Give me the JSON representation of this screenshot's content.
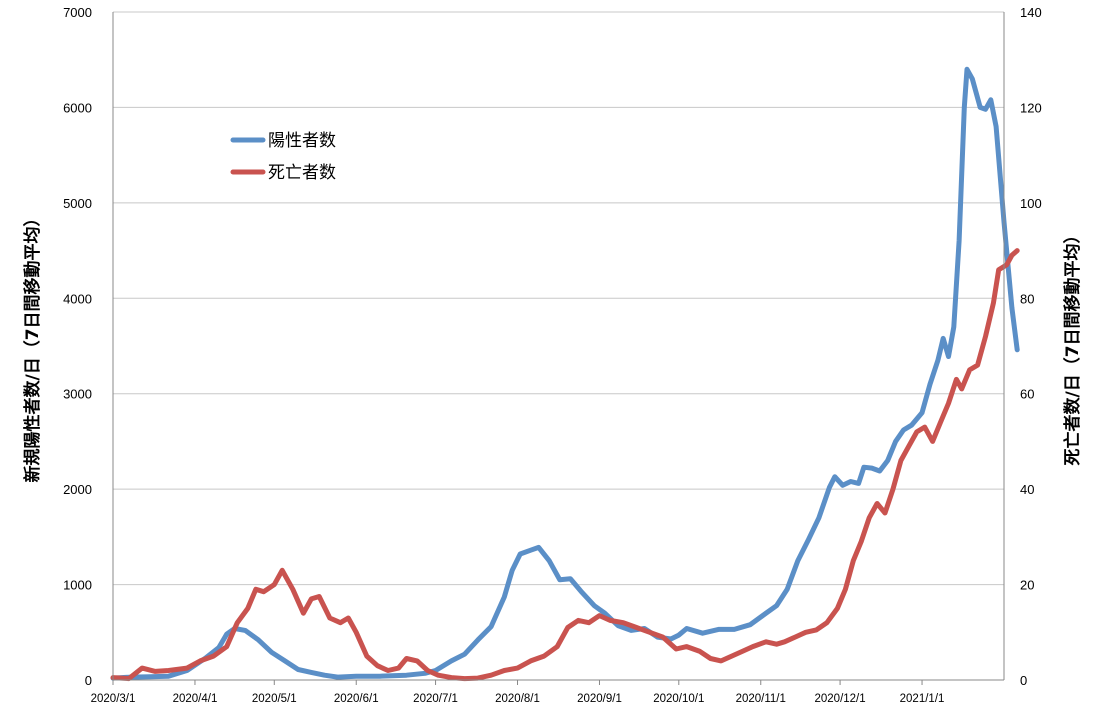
{
  "chart_data": {
    "type": "line",
    "left_axis": {
      "label": "新規陽性者数/日（7日間移動平均）",
      "ylim": [
        0,
        7000
      ],
      "ticks": [
        "0",
        "1000",
        "2000",
        "3000",
        "4000",
        "5000",
        "6000",
        "7000"
      ]
    },
    "right_axis": {
      "label": "死亡者数/日（7日間移動平均）",
      "ylim": [
        0,
        140
      ],
      "ticks": [
        "0",
        "20",
        "40",
        "60",
        "80",
        "100",
        "120",
        "140"
      ]
    },
    "x_ticks": [
      "2020/3/1",
      "2020/4/1",
      "2020/5/1",
      "2020/6/1",
      "2020/7/1",
      "2020/8/1",
      "2020/9/1",
      "2020/10/1",
      "2020/11/1",
      "2020/12/1",
      "2021/1/1"
    ],
    "x_range": [
      "2020/3/1",
      "2021/2/1"
    ],
    "grid": "horizontal",
    "legend_position": "upper-left",
    "series": [
      {
        "name": "陽性者数",
        "axis": "left",
        "color": "#5b8fc7",
        "points": [
          [
            "2020/3/1",
            20
          ],
          [
            "2020/3/8",
            30
          ],
          [
            "2020/3/15",
            35
          ],
          [
            "2020/3/22",
            40
          ],
          [
            "2020/3/29",
            100
          ],
          [
            "2020/4/5",
            230
          ],
          [
            "2020/4/10",
            340
          ],
          [
            "2020/4/13",
            480
          ],
          [
            "2020/4/16",
            540
          ],
          [
            "2020/4/20",
            520
          ],
          [
            "2020/4/25",
            420
          ],
          [
            "2020/4/30",
            290
          ],
          [
            "2020/5/5",
            200
          ],
          [
            "2020/5/10",
            110
          ],
          [
            "2020/5/15",
            80
          ],
          [
            "2020/5/20",
            50
          ],
          [
            "2020/5/25",
            30
          ],
          [
            "2020/6/1",
            40
          ],
          [
            "2020/6/10",
            40
          ],
          [
            "2020/6/20",
            50
          ],
          [
            "2020/6/27",
            70
          ],
          [
            "2020/7/1",
            100
          ],
          [
            "2020/7/7",
            200
          ],
          [
            "2020/7/12",
            270
          ],
          [
            "2020/7/17",
            420
          ],
          [
            "2020/7/22",
            560
          ],
          [
            "2020/7/27",
            870
          ],
          [
            "2020/7/30",
            1150
          ],
          [
            "2020/8/2",
            1320
          ],
          [
            "2020/8/6",
            1360
          ],
          [
            "2020/8/9",
            1390
          ],
          [
            "2020/8/13",
            1250
          ],
          [
            "2020/8/17",
            1050
          ],
          [
            "2020/8/21",
            1060
          ],
          [
            "2020/8/25",
            930
          ],
          [
            "2020/8/30",
            780
          ],
          [
            "2020/9/3",
            700
          ],
          [
            "2020/9/8",
            570
          ],
          [
            "2020/9/13",
            520
          ],
          [
            "2020/9/18",
            540
          ],
          [
            "2020/9/23",
            450
          ],
          [
            "2020/9/28",
            430
          ],
          [
            "2020/10/1",
            470
          ],
          [
            "2020/10/4",
            540
          ],
          [
            "2020/10/10",
            490
          ],
          [
            "2020/10/16",
            530
          ],
          [
            "2020/10/22",
            530
          ],
          [
            "2020/10/28",
            580
          ],
          [
            "2020/11/3",
            700
          ],
          [
            "2020/11/7",
            780
          ],
          [
            "2020/11/11",
            950
          ],
          [
            "2020/11/15",
            1250
          ],
          [
            "2020/11/19",
            1470
          ],
          [
            "2020/11/23",
            1700
          ],
          [
            "2020/11/27",
            2020
          ],
          [
            "2020/11/29",
            2130
          ],
          [
            "2020/12/2",
            2040
          ],
          [
            "2020/12/5",
            2080
          ],
          [
            "2020/12/8",
            2060
          ],
          [
            "2020/12/10",
            2230
          ],
          [
            "2020/12/13",
            2220
          ],
          [
            "2020/12/16",
            2190
          ],
          [
            "2020/12/19",
            2300
          ],
          [
            "2020/12/22",
            2500
          ],
          [
            "2020/12/25",
            2620
          ],
          [
            "2020/12/28",
            2670
          ],
          [
            "2021/1/1",
            2800
          ],
          [
            "2021/1/4",
            3100
          ],
          [
            "2021/1/7",
            3350
          ],
          [
            "2021/1/9",
            3580
          ],
          [
            "2021/1/11",
            3390
          ],
          [
            "2021/1/13",
            3700
          ],
          [
            "2021/1/15",
            4600
          ],
          [
            "2021/1/17",
            6000
          ],
          [
            "2021/1/18",
            6400
          ],
          [
            "2021/1/20",
            6300
          ],
          [
            "2021/1/23",
            6000
          ],
          [
            "2021/1/25",
            5980
          ],
          [
            "2021/1/27",
            6080
          ],
          [
            "2021/1/29",
            5800
          ],
          [
            "2021/2/1",
            4800
          ],
          [
            "2021/2/4",
            3900
          ],
          [
            "2021/2/6",
            3460
          ]
        ]
      },
      {
        "name": "死亡者数",
        "axis": "right",
        "color": "#c9534f",
        "points": [
          [
            "2020/3/1",
            0.5
          ],
          [
            "2020/3/7",
            0.3
          ],
          [
            "2020/3/12",
            2.5
          ],
          [
            "2020/3/17",
            1.8
          ],
          [
            "2020/3/22",
            2.0
          ],
          [
            "2020/3/29",
            2.5
          ],
          [
            "2020/4/3",
            4
          ],
          [
            "2020/4/8",
            5
          ],
          [
            "2020/4/13",
            7
          ],
          [
            "2020/4/17",
            12
          ],
          [
            "2020/4/21",
            15
          ],
          [
            "2020/4/24",
            19
          ],
          [
            "2020/4/27",
            18.5
          ],
          [
            "2020/5/1",
            20
          ],
          [
            "2020/5/4",
            23
          ],
          [
            "2020/5/8",
            19
          ],
          [
            "2020/5/12",
            14
          ],
          [
            "2020/5/15",
            17
          ],
          [
            "2020/5/18",
            17.5
          ],
          [
            "2020/5/22",
            13
          ],
          [
            "2020/5/26",
            12
          ],
          [
            "2020/5/29",
            13
          ],
          [
            "2020/6/1",
            10
          ],
          [
            "2020/6/5",
            5
          ],
          [
            "2020/6/9",
            3
          ],
          [
            "2020/6/13",
            2
          ],
          [
            "2020/6/17",
            2.5
          ],
          [
            "2020/6/20",
            4.5
          ],
          [
            "2020/6/24",
            4
          ],
          [
            "2020/6/28",
            2
          ],
          [
            "2020/7/2",
            1
          ],
          [
            "2020/7/7",
            0.5
          ],
          [
            "2020/7/12",
            0.3
          ],
          [
            "2020/7/17",
            0.4
          ],
          [
            "2020/7/22",
            1.0
          ],
          [
            "2020/7/27",
            2
          ],
          [
            "2020/8/1",
            2.5
          ],
          [
            "2020/8/6",
            4
          ],
          [
            "2020/8/11",
            5
          ],
          [
            "2020/8/16",
            7
          ],
          [
            "2020/8/20",
            11
          ],
          [
            "2020/8/24",
            12.5
          ],
          [
            "2020/8/28",
            12
          ],
          [
            "2020/9/1",
            13.5
          ],
          [
            "2020/9/5",
            12.5
          ],
          [
            "2020/9/10",
            12
          ],
          [
            "2020/9/15",
            11
          ],
          [
            "2020/9/20",
            10
          ],
          [
            "2020/9/25",
            9
          ],
          [
            "2020/9/30",
            6.5
          ],
          [
            "2020/10/4",
            7
          ],
          [
            "2020/10/9",
            6
          ],
          [
            "2020/10/13",
            4.5
          ],
          [
            "2020/10/17",
            4
          ],
          [
            "2020/10/21",
            5
          ],
          [
            "2020/10/25",
            6
          ],
          [
            "2020/10/29",
            7
          ],
          [
            "2020/11/3",
            8
          ],
          [
            "2020/11/7",
            7.5
          ],
          [
            "2020/11/10",
            8
          ],
          [
            "2020/11/14",
            9
          ],
          [
            "2020/11/18",
            10
          ],
          [
            "2020/11/22",
            10.5
          ],
          [
            "2020/11/26",
            12
          ],
          [
            "2020/11/30",
            15
          ],
          [
            "2020/12/3",
            19
          ],
          [
            "2020/12/6",
            25
          ],
          [
            "2020/12/9",
            29
          ],
          [
            "2020/12/12",
            34
          ],
          [
            "2020/12/15",
            37
          ],
          [
            "2020/12/18",
            35
          ],
          [
            "2020/12/21",
            40
          ],
          [
            "2020/12/24",
            46
          ],
          [
            "2020/12/27",
            49
          ],
          [
            "2020/12/30",
            52
          ],
          [
            "2021/1/2",
            53
          ],
          [
            "2021/1/5",
            50
          ],
          [
            "2021/1/8",
            54
          ],
          [
            "2021/1/11",
            58
          ],
          [
            "2021/1/14",
            63
          ],
          [
            "2021/1/16",
            61
          ],
          [
            "2021/1/19",
            65
          ],
          [
            "2021/1/22",
            66
          ],
          [
            "2021/1/25",
            72
          ],
          [
            "2021/1/28",
            79
          ],
          [
            "2021/1/30",
            86
          ],
          [
            "2021/2/2",
            87
          ],
          [
            "2021/2/4",
            89
          ],
          [
            "2021/2/6",
            90
          ]
        ]
      }
    ]
  }
}
